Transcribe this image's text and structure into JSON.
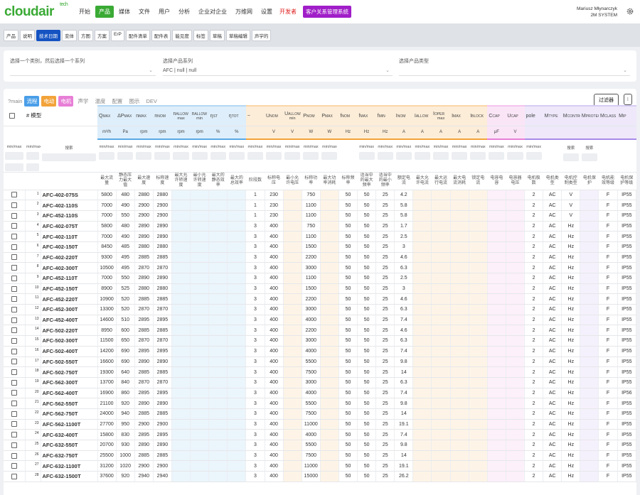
{
  "header": {
    "logo": "cloudair",
    "logo_sup": "tech",
    "menu": [
      "开始",
      "产品",
      "媒体",
      "文件",
      "用户",
      "分析",
      "企业对企业",
      "万维网",
      "设置"
    ],
    "dev": "开发者",
    "crm": "客户关系管理系统",
    "user": "Mariusz Młynarczyk",
    "company": "2M SYSTEM"
  },
  "subtabs": [
    "产品",
    "说明",
    "技术日期",
    "变体",
    "方图",
    "方案",
    "ErP",
    "配件清单",
    "配件表",
    "能见度",
    "标签",
    "草稿",
    "草稿编辑",
    "声学的"
  ],
  "filters": {
    "labels": [
      "选择一个类别，然后选择一个系列",
      "选择产品系列",
      "选择产品类型"
    ],
    "value": "AFC | null | null"
  },
  "toolbar": {
    "main": "?main",
    "tags": [
      "流程",
      "电动",
      "电机",
      "声学",
      "温度",
      "配置",
      "图示",
      "DEV"
    ],
    "filter_button": "过滤器"
  },
  "table": {
    "model_header": "# 模型",
    "columns": [
      {
        "sym": "Q",
        "sub": "MAX",
        "unit": "m³/h",
        "desc": "最大流量",
        "color": "#5aa9e6"
      },
      {
        "sym": "ΔP",
        "sub": "MAX",
        "unit": "Pa",
        "desc": "静态压力最大值",
        "color": "#5aa9e6"
      },
      {
        "sym": "n",
        "sub": "MAX",
        "unit": "rpm",
        "desc": "最大速度",
        "color": "#5aa9e6"
      },
      {
        "sym": "n",
        "sub": "NOM",
        "unit": "rpm",
        "desc": "标称速度",
        "color": "#5aa9e6"
      },
      {
        "sym": "n",
        "sub": "ALLOW",
        "note": "max",
        "unit": "rpm",
        "desc": "最大允许转速度",
        "color": "#5aa9e6"
      },
      {
        "sym": "n",
        "sub": "ALLOW",
        "note": "min",
        "unit": "rpm",
        "desc": "最小允许转速度",
        "color": "#5aa9e6"
      },
      {
        "sym": "η",
        "sub": "ST",
        "unit": "%",
        "desc": "最大的静态效率",
        "color": "#5aa9e6"
      },
      {
        "sym": "η",
        "sub": "TOT",
        "unit": "%",
        "desc": "最大的总效率",
        "color": "#5aa9e6"
      },
      {
        "sym": "~",
        "desc": "阶段数",
        "color": "#f2a33a"
      },
      {
        "sym": "U",
        "sub": "NOM",
        "unit": "V",
        "desc": "标称电压",
        "color": "#f2a33a"
      },
      {
        "sym": "U",
        "sub": "ALLOW",
        "note": "min",
        "unit": "V",
        "desc": "最小允许电压",
        "color": "#f2a33a"
      },
      {
        "sym": "P",
        "sub": "NOM",
        "unit": "W",
        "desc": "标称功率",
        "color": "#f2a33a"
      },
      {
        "sym": "P",
        "sub": "MAX",
        "unit": "W",
        "desc": "最大功率消耗",
        "color": "#f2a33a"
      },
      {
        "sym": "f",
        "sub": "NOM",
        "unit": "Hz",
        "desc": "标称频率",
        "color": "#f2a33a"
      },
      {
        "sym": "f",
        "sub": "MAX",
        "unit": "Hz",
        "desc": "适当中的最大频率",
        "color": "#f2a33a"
      },
      {
        "sym": "f",
        "sub": "MIN",
        "unit": "Hz",
        "desc": "适当中的最小频率",
        "color": "#f2a33a"
      },
      {
        "sym": "I",
        "sub": "NOM",
        "unit": "A",
        "desc": "额定电流",
        "color": "#f2a33a"
      },
      {
        "sym": "I",
        "sub": "ALLOW",
        "unit": "A",
        "desc": "最大允许电流",
        "color": "#f2a33a"
      },
      {
        "sym": "I",
        "sub": "OPER",
        "note": "max",
        "unit": "A",
        "desc": "最大运行电流",
        "color": "#f2a33a"
      },
      {
        "sym": "I",
        "sub": "MAX",
        "unit": "A",
        "desc": "最大电流消耗",
        "color": "#f2a33a"
      },
      {
        "sym": "I",
        "sub": "BLOCK",
        "unit": "A",
        "desc": "锁定电流",
        "color": "#f2a33a"
      },
      {
        "sym": "C",
        "sub": "CAP",
        "unit": "μF",
        "desc": "电容电容",
        "color": "#e77fd6"
      },
      {
        "sym": "U",
        "sub": "CAP",
        "unit": "V",
        "desc": "电容器电压",
        "color": "#e77fd6"
      },
      {
        "sym": "pole",
        "desc": "电机极数",
        "color": "#a98be8"
      },
      {
        "sym": "M",
        "sub": "TYPE",
        "desc": "电机类型",
        "color": "#a98be8"
      },
      {
        "sym": "M",
        "sub": "CONTROL",
        "desc": "电机控制类型",
        "color": "#a98be8"
      },
      {
        "sym": "M",
        "sub": "PROTECT",
        "desc": "电机保护",
        "color": "#a98be8"
      },
      {
        "sym": "M",
        "sub": "CLASS",
        "desc": "电机能效等级",
        "color": "#a98be8"
      },
      {
        "sym": "M",
        "sub": "IP",
        "desc": "电机保护等级",
        "color": "#a98be8"
      }
    ],
    "filter_lead": [
      "min/max",
      "min/max",
      "搜索"
    ],
    "filter_row": [
      "min/max",
      "min/max",
      "min/max",
      "min/max",
      "min/max",
      "min/max",
      "min/max",
      "min/max",
      "min/max",
      "min/max",
      "min/max",
      "min/max",
      "min/max",
      null,
      "min/max",
      "min/max",
      "min/max",
      "min/max",
      "min/max",
      "min/max",
      "min/max",
      "min/max",
      "min/max",
      "min/max",
      null,
      "搜索",
      "搜索",
      null,
      null
    ],
    "rows": [
      [
        1,
        "AFC-402-075S",
        5800,
        480,
        2880,
        2880,
        null,
        null,
        null,
        null,
        1,
        230,
        null,
        750,
        null,
        50,
        50,
        25,
        4.2,
        null,
        null,
        null,
        null,
        null,
        null,
        2,
        "AC",
        "V",
        null,
        "F",
        "IP55"
      ],
      [
        2,
        "AFC-402-110S",
        7000,
        490,
        2900,
        2900,
        null,
        null,
        null,
        null,
        1,
        230,
        null,
        1100,
        null,
        50,
        50,
        25,
        5.8,
        null,
        null,
        null,
        null,
        null,
        null,
        2,
        "AC",
        "V",
        null,
        "F",
        "IP55"
      ],
      [
        3,
        "AFC-452-110S",
        7000,
        550,
        2900,
        2900,
        null,
        null,
        null,
        null,
        1,
        230,
        null,
        1100,
        null,
        50,
        50,
        25,
        5.8,
        null,
        null,
        null,
        null,
        null,
        null,
        2,
        "AC",
        "V",
        null,
        "F",
        "IP55"
      ],
      [
        4,
        "AFC-402-075T",
        5800,
        480,
        2890,
        2890,
        null,
        null,
        null,
        null,
        3,
        400,
        null,
        750,
        null,
        50,
        50,
        25,
        1.7,
        null,
        null,
        null,
        null,
        null,
        null,
        2,
        "AC",
        "Hz",
        null,
        "F",
        "IP55"
      ],
      [
        5,
        "AFC-402-110T",
        7000,
        490,
        2890,
        2890,
        null,
        null,
        null,
        null,
        3,
        400,
        null,
        1100,
        null,
        50,
        50,
        25,
        2.5,
        null,
        null,
        null,
        null,
        null,
        null,
        2,
        "AC",
        "Hz",
        null,
        "F",
        "IP55"
      ],
      [
        6,
        "AFC-402-150T",
        8450,
        485,
        2880,
        2880,
        null,
        null,
        null,
        null,
        3,
        400,
        null,
        1500,
        null,
        50,
        50,
        25,
        3,
        null,
        null,
        null,
        null,
        null,
        null,
        2,
        "AC",
        "Hz",
        null,
        "F",
        "IP55"
      ],
      [
        7,
        "AFC-402-220T",
        9300,
        495,
        2885,
        2885,
        null,
        null,
        null,
        null,
        3,
        400,
        null,
        2200,
        null,
        50,
        50,
        25,
        4.6,
        null,
        null,
        null,
        null,
        null,
        null,
        2,
        "AC",
        "Hz",
        null,
        "F",
        "IP55"
      ],
      [
        8,
        "AFC-402-300T",
        10500,
        495,
        2870,
        2870,
        null,
        null,
        null,
        null,
        3,
        400,
        null,
        3000,
        null,
        50,
        50,
        25,
        6.3,
        null,
        null,
        null,
        null,
        null,
        null,
        2,
        "AC",
        "Hz",
        null,
        "F",
        "IP55"
      ],
      [
        9,
        "AFC-452-110T",
        7000,
        550,
        2890,
        2890,
        null,
        null,
        null,
        null,
        3,
        400,
        null,
        1100,
        null,
        50,
        50,
        25,
        2.5,
        null,
        null,
        null,
        null,
        null,
        null,
        2,
        "AC",
        "Hz",
        null,
        "F",
        "IP55"
      ],
      [
        10,
        "AFC-452-150T",
        8900,
        525,
        2880,
        2880,
        null,
        null,
        null,
        null,
        3,
        400,
        null,
        1500,
        null,
        50,
        50,
        25,
        3,
        null,
        null,
        null,
        null,
        null,
        null,
        2,
        "AC",
        "Hz",
        null,
        "F",
        "IP55"
      ],
      [
        11,
        "AFC-452-220T",
        10900,
        520,
        2885,
        2885,
        null,
        null,
        null,
        null,
        3,
        400,
        null,
        2200,
        null,
        50,
        50,
        25,
        4.6,
        null,
        null,
        null,
        null,
        null,
        null,
        2,
        "AC",
        "Hz",
        null,
        "F",
        "IP55"
      ],
      [
        12,
        "AFC-452-300T",
        13300,
        520,
        2870,
        2870,
        null,
        null,
        null,
        null,
        3,
        400,
        null,
        3000,
        null,
        50,
        50,
        25,
        6.3,
        null,
        null,
        null,
        null,
        null,
        null,
        2,
        "AC",
        "Hz",
        null,
        "F",
        "IP55"
      ],
      [
        13,
        "AFC-452-400T",
        14600,
        510,
        2895,
        2895,
        null,
        null,
        null,
        null,
        3,
        400,
        null,
        4000,
        null,
        50,
        50,
        25,
        7.4,
        null,
        null,
        null,
        null,
        null,
        null,
        2,
        "AC",
        "Hz",
        null,
        "F",
        "IP55"
      ],
      [
        14,
        "AFC-502-220T",
        8950,
        600,
        2885,
        2885,
        null,
        null,
        null,
        null,
        3,
        400,
        null,
        2200,
        null,
        50,
        50,
        25,
        4.6,
        null,
        null,
        null,
        null,
        null,
        null,
        2,
        "AC",
        "Hz",
        null,
        "F",
        "IP55"
      ],
      [
        15,
        "AFC-502-300T",
        11500,
        650,
        2870,
        2870,
        null,
        null,
        null,
        null,
        3,
        400,
        null,
        3000,
        null,
        50,
        50,
        25,
        6.3,
        null,
        null,
        null,
        null,
        null,
        null,
        2,
        "AC",
        "Hz",
        null,
        "F",
        "IP55"
      ],
      [
        16,
        "AFC-502-400T",
        14200,
        690,
        2895,
        2895,
        null,
        null,
        null,
        null,
        3,
        400,
        null,
        4000,
        null,
        50,
        50,
        25,
        7.4,
        null,
        null,
        null,
        null,
        null,
        null,
        2,
        "AC",
        "Hz",
        null,
        "F",
        "IP55"
      ],
      [
        17,
        "AFC-502-550T",
        16600,
        690,
        2890,
        2890,
        null,
        null,
        null,
        null,
        3,
        400,
        null,
        5500,
        null,
        50,
        50,
        25,
        9.8,
        null,
        null,
        null,
        null,
        null,
        null,
        2,
        "AC",
        "Hz",
        null,
        "F",
        "IP55"
      ],
      [
        18,
        "AFC-502-750T",
        19300,
        640,
        2885,
        2885,
        null,
        null,
        null,
        null,
        3,
        400,
        null,
        7500,
        null,
        50,
        50,
        25,
        14,
        null,
        null,
        null,
        null,
        null,
        null,
        2,
        "AC",
        "Hz",
        null,
        "F",
        "IP55"
      ],
      [
        19,
        "AFC-562-300T",
        13700,
        840,
        2870,
        2870,
        null,
        null,
        null,
        null,
        3,
        400,
        null,
        3000,
        null,
        50,
        50,
        25,
        6.3,
        null,
        null,
        null,
        null,
        null,
        null,
        2,
        "AC",
        "Hz",
        null,
        "F",
        "IP55"
      ],
      [
        20,
        "AFC-562-400T",
        16900,
        860,
        2895,
        2895,
        null,
        null,
        null,
        null,
        3,
        400,
        null,
        4000,
        null,
        50,
        50,
        25,
        7.4,
        null,
        null,
        null,
        null,
        null,
        null,
        2,
        "AC",
        "Hz",
        null,
        "F",
        "IP56"
      ],
      [
        21,
        "AFC-562-550T",
        21100,
        920,
        2890,
        2890,
        null,
        null,
        null,
        null,
        3,
        400,
        null,
        5500,
        null,
        50,
        50,
        25,
        9.8,
        null,
        null,
        null,
        null,
        null,
        null,
        2,
        "AC",
        "Hz",
        null,
        "F",
        "IP55"
      ],
      [
        22,
        "AFC-562-750T",
        24000,
        940,
        2885,
        2885,
        null,
        null,
        null,
        null,
        3,
        400,
        null,
        7500,
        null,
        50,
        50,
        25,
        14,
        null,
        null,
        null,
        null,
        null,
        null,
        2,
        "AC",
        "Hz",
        null,
        "F",
        "IP55"
      ],
      [
        23,
        "AFC-562-1100T",
        27700,
        950,
        2900,
        2900,
        null,
        null,
        null,
        null,
        3,
        400,
        null,
        11000,
        null,
        50,
        50,
        25,
        19.1,
        null,
        null,
        null,
        null,
        null,
        null,
        2,
        "AC",
        "Hz",
        null,
        "F",
        "IP55"
      ],
      [
        24,
        "AFC-632-400T",
        15800,
        830,
        2895,
        2895,
        null,
        null,
        null,
        null,
        3,
        400,
        null,
        4000,
        null,
        50,
        50,
        25,
        7.4,
        null,
        null,
        null,
        null,
        null,
        null,
        2,
        "AC",
        "Hz",
        null,
        "F",
        "IP55"
      ],
      [
        25,
        "AFC-632-550T",
        20700,
        930,
        2890,
        2890,
        null,
        null,
        null,
        null,
        3,
        400,
        null,
        5500,
        null,
        50,
        50,
        25,
        9.8,
        null,
        null,
        null,
        null,
        null,
        null,
        2,
        "AC",
        "Hz",
        null,
        "F",
        "IP55"
      ],
      [
        26,
        "AFC-632-750T",
        25500,
        1000,
        2885,
        2885,
        null,
        null,
        null,
        null,
        3,
        400,
        null,
        7500,
        null,
        50,
        50,
        25,
        14,
        null,
        null,
        null,
        null,
        null,
        null,
        2,
        "AC",
        "Hz",
        null,
        "F",
        "IP55"
      ],
      [
        27,
        "AFC-632-1100T",
        31200,
        1020,
        2900,
        2900,
        null,
        null,
        null,
        null,
        3,
        400,
        null,
        11000,
        null,
        50,
        50,
        25,
        19.1,
        null,
        null,
        null,
        null,
        null,
        null,
        2,
        "AC",
        "Hz",
        null,
        "F",
        "IP55"
      ],
      [
        28,
        "AFC-632-1500T",
        37600,
        920,
        2940,
        2940,
        null,
        null,
        null,
        null,
        3,
        400,
        null,
        15000,
        null,
        50,
        50,
        25,
        26.2,
        null,
        null,
        null,
        null,
        null,
        null,
        2,
        "AC",
        "Hz",
        null,
        "F",
        "IP55"
      ]
    ]
  }
}
